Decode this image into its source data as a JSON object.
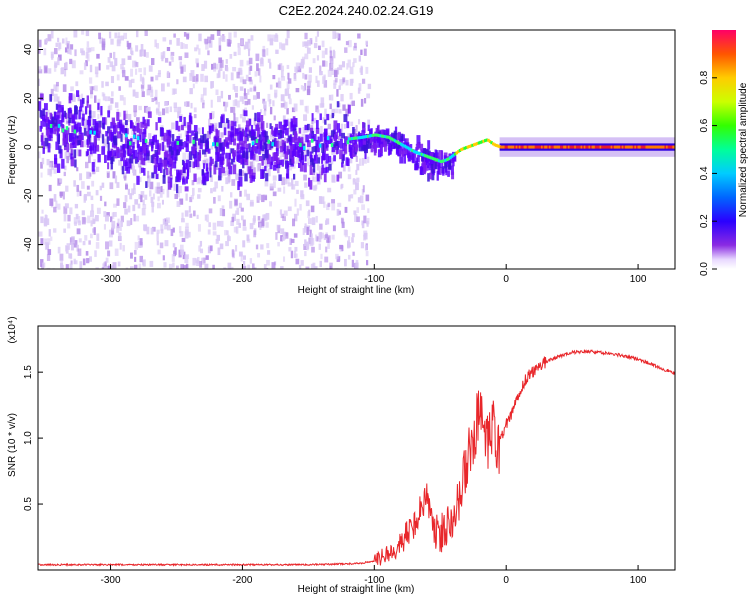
{
  "title": "C2E2.2024.240.02.24.G19",
  "colors": {
    "signal": "#e8262a",
    "spectrum_core": "#5a00ff",
    "spectrum_halo": "#c9b3f2"
  },
  "chart_data": [
    {
      "type": "heatmap",
      "title": "C2E2.2024.240.02.24.G19",
      "xlabel": "Height of straight line (km)",
      "ylabel": "Frequency (Hz)",
      "xlim": [
        -355,
        128
      ],
      "ylim": [
        -50,
        48
      ],
      "xticks": [
        -300,
        -200,
        -100,
        0,
        100
      ],
      "yticks": [
        -40,
        -20,
        0,
        20,
        40
      ],
      "colorbar": {
        "label": "Normalized spectral amplitude",
        "range": [
          0,
          1
        ],
        "ticks": [
          "0.0",
          "0.2",
          "0.4",
          "0.6",
          "0.8"
        ],
        "tick_values": [
          0,
          0.2,
          0.4,
          0.6,
          0.8
        ],
        "colormap": "rainbow (purple to red)"
      },
      "ridge": {
        "x": [
          -355,
          -340,
          -325,
          -310,
          -300,
          -285,
          -270,
          -260,
          -245,
          -230,
          -215,
          -200,
          -185,
          -170,
          -155,
          -140,
          -125,
          -110,
          -100,
          -90,
          -80,
          -70,
          -60,
          -50,
          -45,
          -40,
          -35,
          -30,
          -25,
          -20,
          -15,
          -10,
          -5,
          0,
          20,
          50,
          80,
          100,
          128
        ],
        "y": [
          10,
          8,
          7,
          6,
          5,
          3,
          1,
          -1,
          0,
          1,
          1,
          1,
          2,
          2,
          1,
          2,
          3,
          4,
          5,
          4,
          1,
          -2,
          -4,
          -6,
          -5,
          -3,
          -1,
          0,
          1,
          2,
          3,
          1,
          0,
          0,
          0,
          0,
          0,
          0,
          0
        ]
      }
    },
    {
      "type": "line",
      "xlabel": "Height of straight line (km)",
      "ylabel": "SNR (10 * v/v)",
      "multiplier": "(x10⁴)",
      "xlim": [
        -355,
        128
      ],
      "ylim": [
        0,
        1.85
      ],
      "xticks": [
        -300,
        -200,
        -100,
        0,
        100
      ],
      "yticks": [
        0.5,
        1.0,
        1.5
      ],
      "ytick_labels": [
        "0.5",
        "1.0",
        "1.5"
      ],
      "series": [
        {
          "x": [
            -355,
            -300,
            -250,
            -200,
            -150,
            -110,
            -100,
            -90,
            -80,
            -70,
            -65,
            -60,
            -55,
            -50,
            -45,
            -40,
            -35,
            -30,
            -25,
            -20,
            -15,
            -10,
            -5,
            0,
            5,
            10,
            15,
            20,
            25,
            30,
            40,
            50,
            60,
            70,
            80,
            90,
            100,
            110,
            120,
            128
          ],
          "y": [
            0.04,
            0.04,
            0.04,
            0.04,
            0.04,
            0.05,
            0.07,
            0.12,
            0.2,
            0.35,
            0.45,
            0.6,
            0.3,
            0.25,
            0.35,
            0.45,
            0.55,
            0.8,
            1.0,
            1.2,
            0.9,
            1.05,
            0.95,
            1.1,
            1.2,
            1.35,
            1.45,
            1.5,
            1.55,
            1.58,
            1.62,
            1.65,
            1.66,
            1.65,
            1.64,
            1.62,
            1.6,
            1.56,
            1.52,
            1.49
          ]
        }
      ]
    }
  ]
}
